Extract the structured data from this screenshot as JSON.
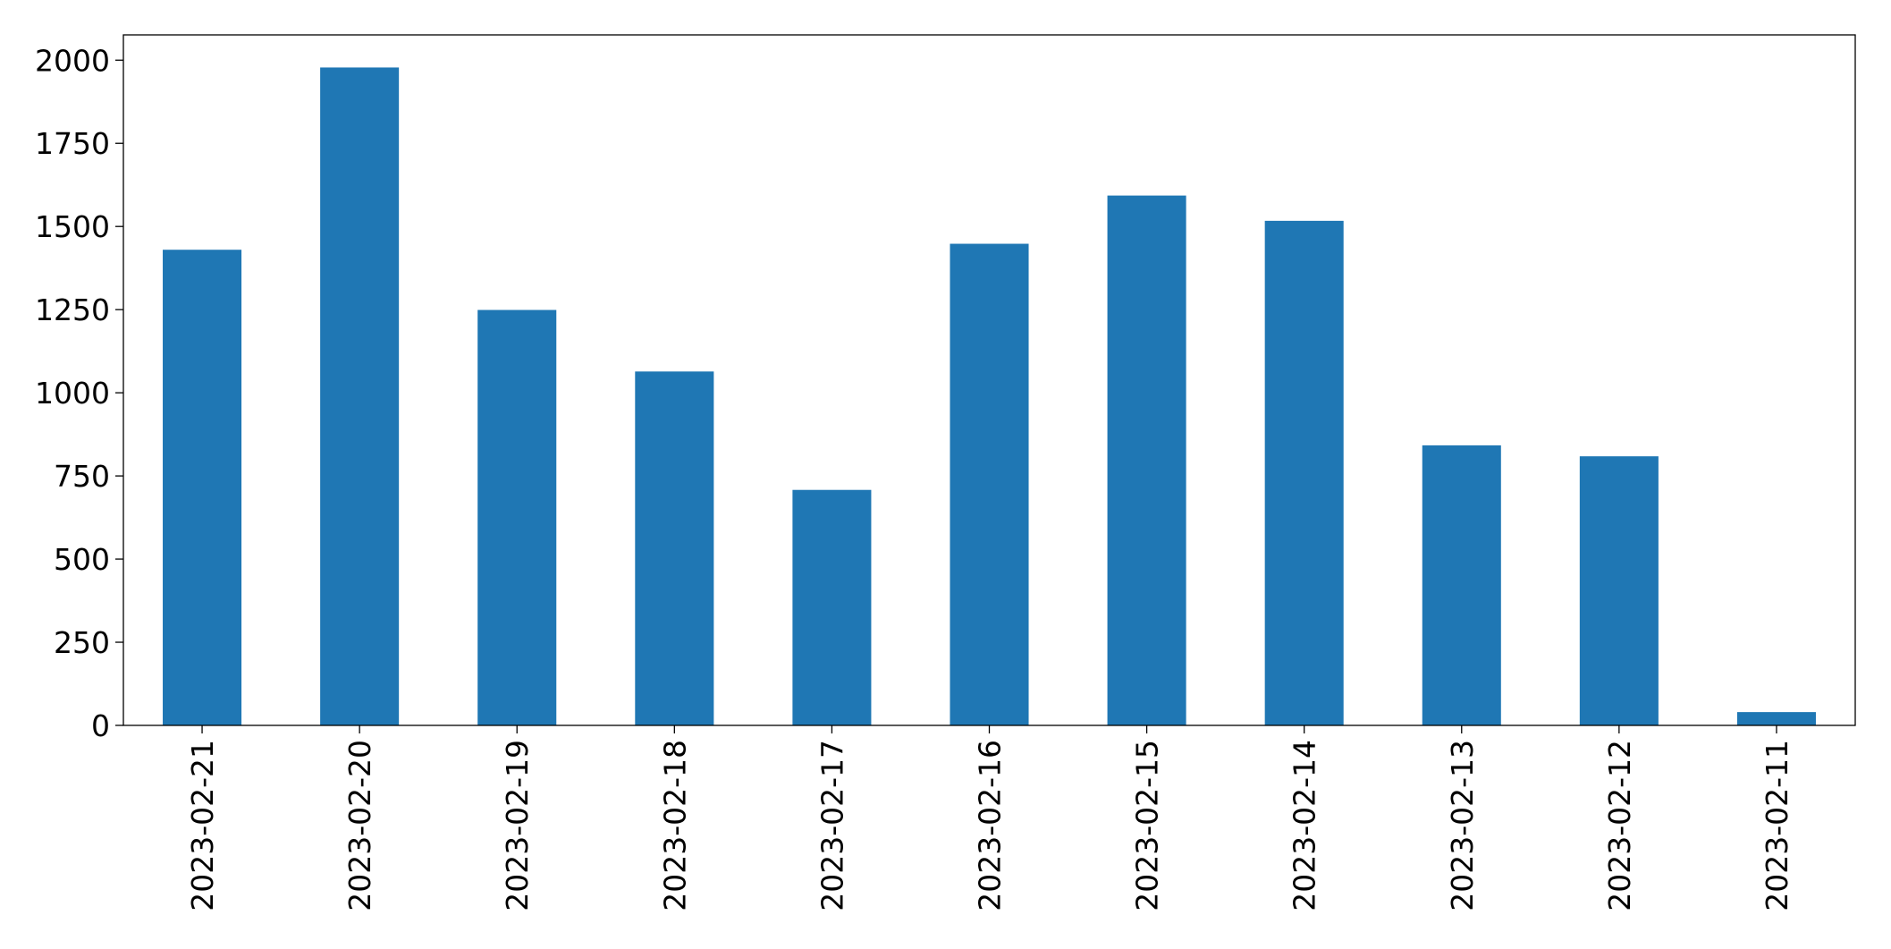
{
  "chart_data": {
    "type": "bar",
    "categories": [
      "2023-02-21",
      "2023-02-20",
      "2023-02-19",
      "2023-02-18",
      "2023-02-17",
      "2023-02-16",
      "2023-02-15",
      "2023-02-14",
      "2023-02-13",
      "2023-02-12",
      "2023-02-11"
    ],
    "values": [
      1430,
      1978,
      1249,
      1064,
      708,
      1448,
      1593,
      1517,
      842,
      809,
      40
    ],
    "color": "#1f77b4",
    "ylim": [
      0,
      2076
    ],
    "yticks": [
      0,
      250,
      500,
      750,
      1000,
      1250,
      1500,
      1750,
      2000
    ],
    "grid": false
  }
}
